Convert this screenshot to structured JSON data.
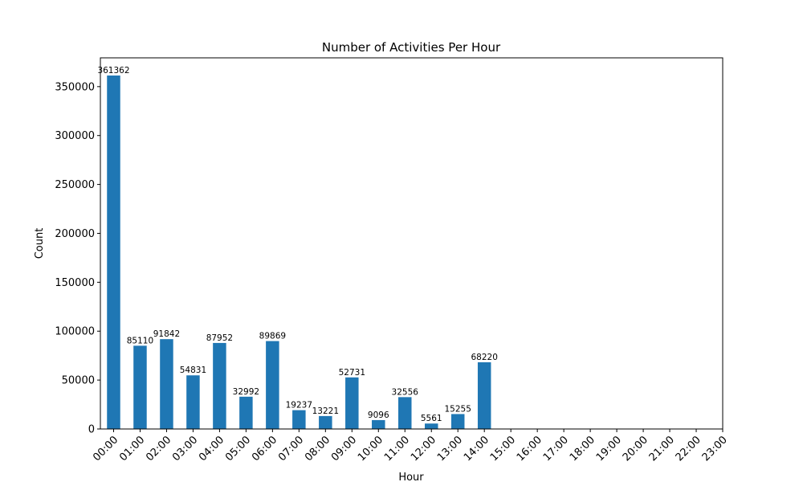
{
  "chart_data": {
    "type": "bar",
    "title": "Number of Activities Per Hour",
    "x_label": "Hour",
    "y_label": "Count",
    "categories": [
      "00:00",
      "01:00",
      "02:00",
      "03:00",
      "04:00",
      "05:00",
      "06:00",
      "07:00",
      "08:00",
      "09:00",
      "10:00",
      "11:00",
      "12:00",
      "13:00",
      "14:00",
      "15:00",
      "16:00",
      "17:00",
      "18:00",
      "19:00",
      "20:00",
      "21:00",
      "22:00",
      "23:00"
    ],
    "values": [
      361362,
      85110,
      91842,
      54831,
      87952,
      32992,
      89869,
      19237,
      13221,
      52731,
      9096,
      32556,
      5561,
      15255,
      68220,
      null,
      null,
      null,
      null,
      null,
      null,
      null,
      null,
      null
    ],
    "color": "#1f77b4",
    "ylim": [
      0,
      379430
    ],
    "yticks": [
      0,
      50000,
      100000,
      150000,
      200000,
      250000,
      300000,
      350000
    ],
    "grid": false
  }
}
